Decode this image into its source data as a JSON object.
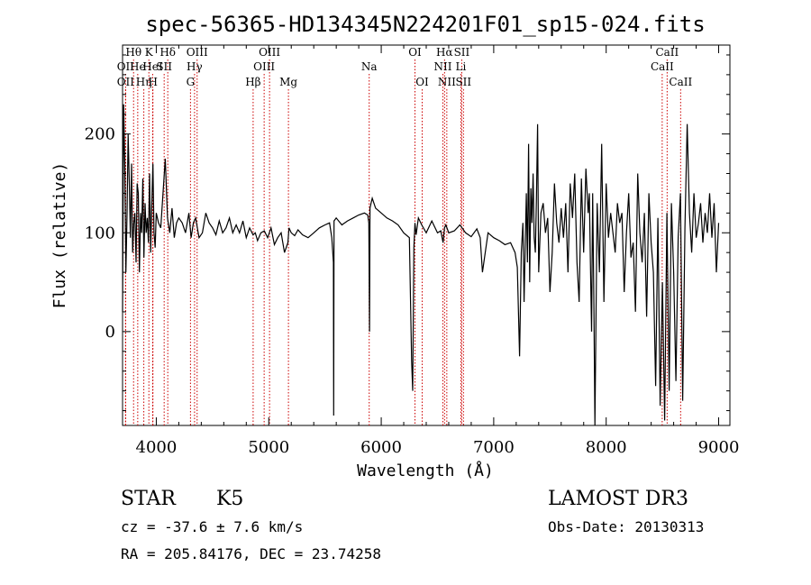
{
  "title": "spec-56365-HD134345N224201F01_sp15-024.fits",
  "info": {
    "object_class": "STAR",
    "subclass": "K5",
    "redshift_text": "cz = -37.6 ± 7.6 km/s",
    "coords_text": "RA = 205.84176, DEC =  23.74258",
    "survey": "LAMOST DR3",
    "obs_date": "Obs-Date: 20130313"
  },
  "chart_data": {
    "type": "line",
    "xlabel": "Wavelength (Å)",
    "ylabel": "Flux (relative)",
    "xlim": [
      3700,
      9100
    ],
    "ylim": [
      -95,
      290
    ],
    "xticks": [
      4000,
      5000,
      6000,
      7000,
      8000,
      9000
    ],
    "yticks": [
      0,
      100,
      200
    ],
    "grid": false,
    "colors": {
      "spectrum": "#000000",
      "line_marker": "#cc0000",
      "frame": "#000000"
    },
    "spectral_lines": [
      {
        "name": "OII",
        "wavelength": 3727,
        "row": 2
      },
      {
        "name": "OII",
        "wavelength": 3727,
        "row": 3
      },
      {
        "name": "Hθ",
        "wavelength": 3798,
        "row": 1
      },
      {
        "name": "He",
        "wavelength": 3835,
        "row": 2
      },
      {
        "name": "Hη",
        "wavelength": 3889,
        "row": 3
      },
      {
        "name": "K",
        "wavelength": 3934,
        "row": 1
      },
      {
        "name": "HeI",
        "wavelength": 3968,
        "row": 2
      },
      {
        "name": "H",
        "wavelength": 3970,
        "row": 3
      },
      {
        "name": "SII",
        "wavelength": 4070,
        "row": 2
      },
      {
        "name": "Hδ",
        "wavelength": 4102,
        "row": 1
      },
      {
        "name": "G",
        "wavelength": 4304,
        "row": 3
      },
      {
        "name": "Hγ",
        "wavelength": 4340,
        "row": 2
      },
      {
        "name": "OIII",
        "wavelength": 4363,
        "row": 1
      },
      {
        "name": "Hβ",
        "wavelength": 4861,
        "row": 3
      },
      {
        "name": "OIII",
        "wavelength": 4959,
        "row": 2
      },
      {
        "name": "OIII",
        "wavelength": 5007,
        "row": 1
      },
      {
        "name": "Mg",
        "wavelength": 5175,
        "row": 3
      },
      {
        "name": "Na",
        "wavelength": 5893,
        "row": 2
      },
      {
        "name": "OI",
        "wavelength": 6300,
        "row": 1
      },
      {
        "name": "OI",
        "wavelength": 6364,
        "row": 3
      },
      {
        "name": "NII",
        "wavelength": 6548,
        "row": 2
      },
      {
        "name": "Hα",
        "wavelength": 6563,
        "row": 1
      },
      {
        "name": "NII",
        "wavelength": 6583,
        "row": 3
      },
      {
        "name": "SII",
        "wavelength": 6716,
        "row": 1
      },
      {
        "name": "Li",
        "wavelength": 6708,
        "row": 2
      },
      {
        "name": "SII",
        "wavelength": 6731,
        "row": 3
      },
      {
        "name": "CaII",
        "wavelength": 8498,
        "row": 2
      },
      {
        "name": "CaII",
        "wavelength": 8542,
        "row": 1
      },
      {
        "name": "CaII",
        "wavelength": 8662,
        "row": 3
      }
    ],
    "spectrum": {
      "x": [
        3700,
        3710,
        3720,
        3730,
        3740,
        3750,
        3760,
        3770,
        3780,
        3790,
        3800,
        3810,
        3820,
        3830,
        3840,
        3850,
        3860,
        3870,
        3880,
        3890,
        3900,
        3910,
        3920,
        3930,
        3940,
        3950,
        3960,
        3970,
        3980,
        3990,
        4000,
        4020,
        4040,
        4060,
        4080,
        4100,
        4120,
        4140,
        4160,
        4180,
        4200,
        4230,
        4260,
        4290,
        4310,
        4330,
        4350,
        4380,
        4410,
        4440,
        4470,
        4500,
        4530,
        4560,
        4590,
        4620,
        4650,
        4680,
        4710,
        4740,
        4770,
        4800,
        4830,
        4860,
        4880,
        4900,
        4930,
        4960,
        4990,
        5020,
        5050,
        5080,
        5110,
        5140,
        5170,
        5180,
        5200,
        5230,
        5260,
        5300,
        5350,
        5400,
        5450,
        5500,
        5540,
        5560,
        5575,
        5577,
        5580,
        5600,
        5650,
        5700,
        5750,
        5800,
        5850,
        5880,
        5890,
        5896,
        5900,
        5910,
        5920,
        5950,
        6000,
        6050,
        6100,
        6150,
        6200,
        6250,
        6270,
        6280,
        6290,
        6300,
        6310,
        6330,
        6360,
        6400,
        6450,
        6500,
        6530,
        6550,
        6563,
        6575,
        6600,
        6650,
        6700,
        6750,
        6800,
        6850,
        6870,
        6880,
        6900,
        6950,
        7000,
        7050,
        7100,
        7150,
        7170,
        7190,
        7210,
        7230,
        7245,
        7260,
        7270,
        7280,
        7290,
        7300,
        7310,
        7320,
        7330,
        7340,
        7350,
        7360,
        7370,
        7380,
        7390,
        7400,
        7420,
        7440,
        7460,
        7480,
        7500,
        7520,
        7540,
        7560,
        7580,
        7600,
        7620,
        7640,
        7660,
        7680,
        7700,
        7720,
        7740,
        7760,
        7780,
        7800,
        7820,
        7840,
        7850,
        7860,
        7870,
        7880,
        7890,
        7900,
        7920,
        7940,
        7960,
        7980,
        8000,
        8020,
        8040,
        8060,
        8080,
        8100,
        8120,
        8140,
        8160,
        8180,
        8200,
        8220,
        8240,
        8260,
        8280,
        8300,
        8320,
        8340,
        8360,
        8380,
        8400,
        8420,
        8440,
        8460,
        8480,
        8500,
        8520,
        8540,
        8560,
        8580,
        8600,
        8620,
        8640,
        8660,
        8680,
        8700,
        8720,
        8740,
        8760,
        8780,
        8800,
        8820,
        8840,
        8860,
        8880,
        8900,
        8920,
        8940,
        8960,
        8980,
        9000
      ],
      "y": [
        20,
        230,
        170,
        60,
        120,
        200,
        150,
        95,
        170,
        80,
        110,
        120,
        70,
        150,
        140,
        60,
        120,
        100,
        155,
        75,
        130,
        100,
        115,
        90,
        160,
        80,
        130,
        170,
        100,
        85,
        120,
        110,
        105,
        140,
        175,
        115,
        100,
        125,
        95,
        110,
        115,
        110,
        100,
        120,
        95,
        110,
        115,
        95,
        100,
        120,
        110,
        105,
        98,
        112,
        100,
        105,
        115,
        100,
        108,
        100,
        112,
        95,
        105,
        98,
        100,
        92,
        100,
        102,
        95,
        105,
        88,
        95,
        100,
        80,
        90,
        105,
        100,
        97,
        103,
        98,
        95,
        100,
        105,
        108,
        110,
        95,
        70,
        -85,
        112,
        115,
        108,
        112,
        115,
        118,
        120,
        118,
        110,
        0,
        125,
        130,
        135,
        125,
        120,
        115,
        112,
        108,
        100,
        95,
        -30,
        -60,
        85,
        110,
        98,
        115,
        108,
        100,
        112,
        100,
        102,
        90,
        105,
        108,
        100,
        102,
        108,
        100,
        96,
        104,
        98,
        95,
        60,
        100,
        95,
        92,
        88,
        90,
        85,
        80,
        65,
        -25,
        80,
        110,
        30,
        85,
        140,
        70,
        190,
        50,
        145,
        110,
        160,
        95,
        80,
        135,
        210,
        60,
        120,
        130,
        100,
        115,
        40,
        80,
        150,
        110,
        90,
        125,
        95,
        130,
        60,
        150,
        115,
        160,
        70,
        30,
        155,
        80,
        165,
        120,
        140,
        70,
        0,
        140,
        35,
        -95,
        130,
        60,
        190,
        30,
        150,
        95,
        120,
        100,
        80,
        130,
        110,
        120,
        40,
        100,
        140,
        75,
        90,
        20,
        160,
        100,
        70,
        120,
        15,
        140,
        90,
        60,
        -55,
        115,
        -75,
        50,
        -90,
        120,
        -60,
        130,
        60,
        -50,
        95,
        140,
        -70,
        105,
        210,
        120,
        80,
        140,
        95,
        110,
        130,
        90,
        120,
        100,
        140,
        95,
        130,
        60,
        110
      ]
    }
  }
}
